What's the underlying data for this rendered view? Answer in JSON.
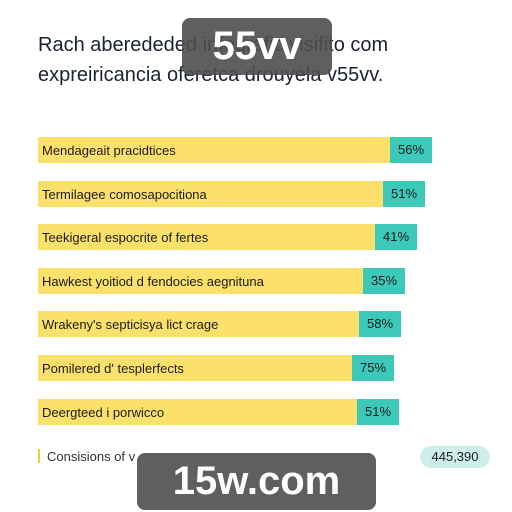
{
  "header": {
    "title_lines": [
      "Rach aberededed infografic visifito com",
      "expreiricancia oferetca drouyela v55vv."
    ]
  },
  "rows": [
    {
      "label": "Mendageait pracidtices",
      "value": "56%"
    },
    {
      "label": "Termilagee comosapocitiona",
      "value": "51%"
    },
    {
      "label": "Teekigeral espocrite of fertes",
      "value": "41%"
    },
    {
      "label": "Hawkest yoitiod d fendocies aegnituna",
      "value": "35%"
    },
    {
      "label": "Wrakeny's septicisya lict crage",
      "value": "58%"
    },
    {
      "label": "Pomilered d' tesplerfects",
      "value": "75%"
    },
    {
      "label": "Deergteed i porwicco",
      "value": "51%"
    }
  ],
  "footer": {
    "text": "Consisions of v",
    "badge": "445,390"
  },
  "watermarks": [
    "55vv",
    "15w.com"
  ]
}
